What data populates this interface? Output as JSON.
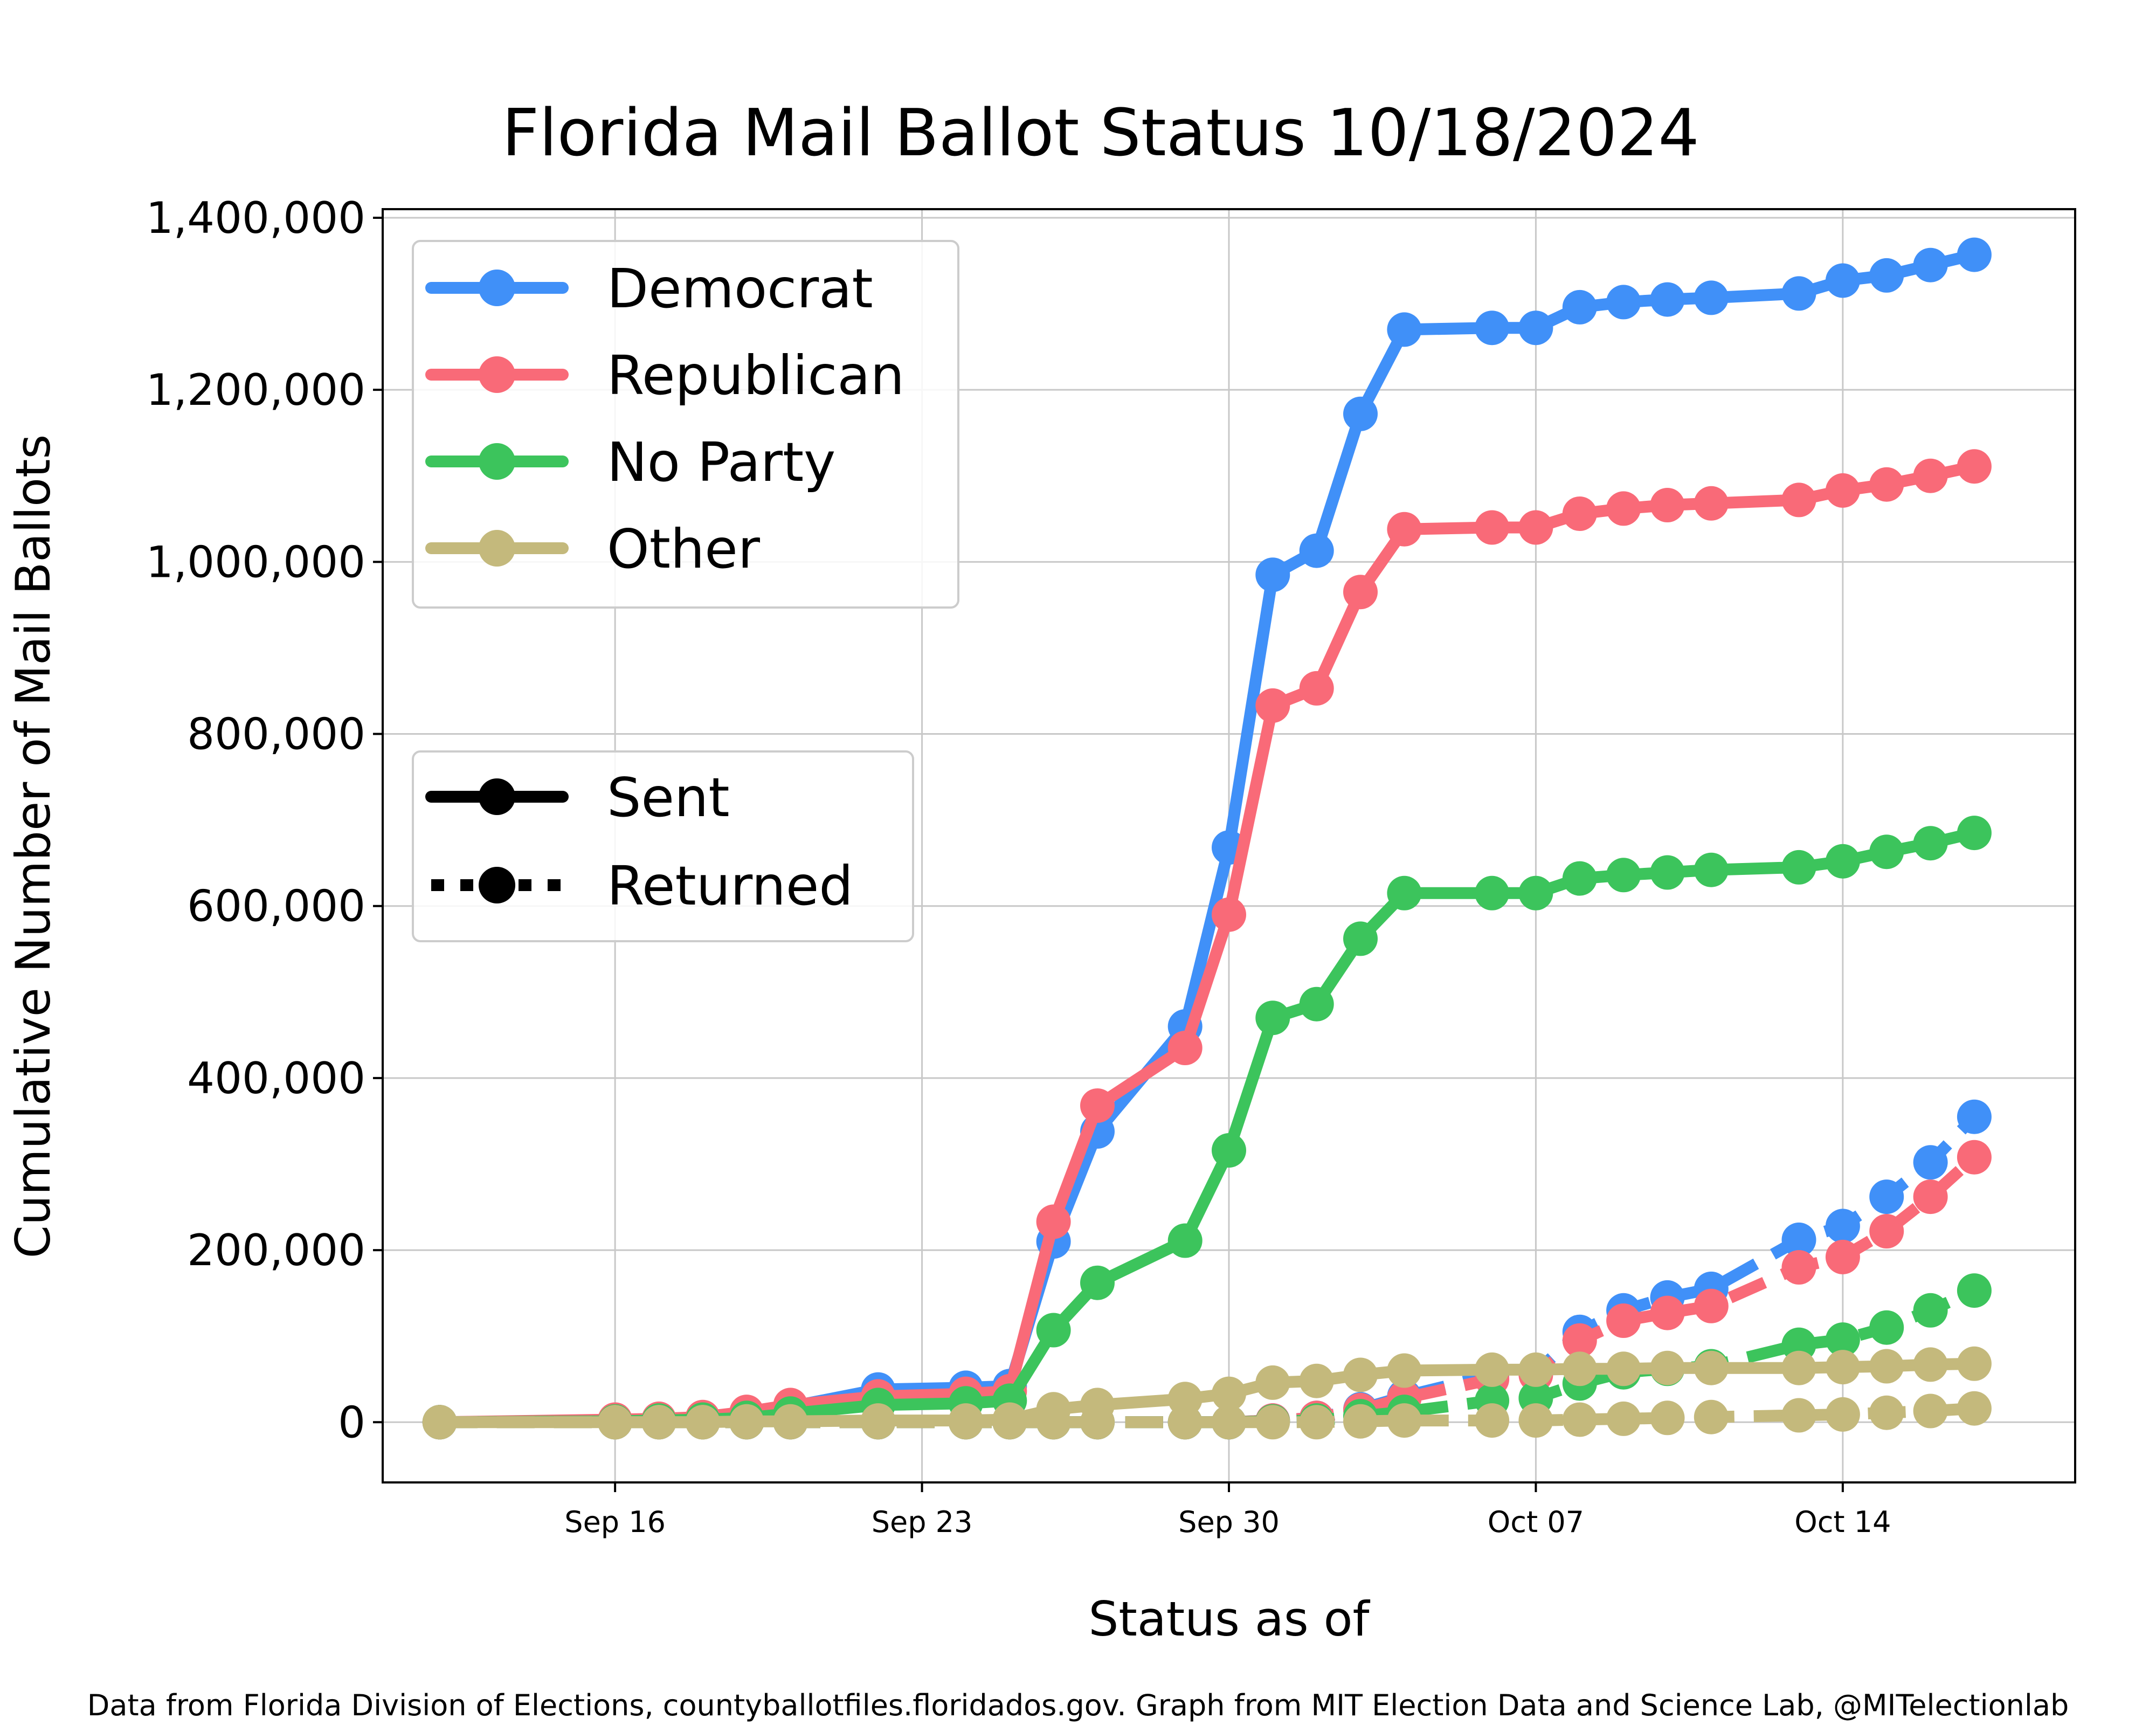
{
  "chart_data": {
    "type": "line",
    "title": "Florida Mail Ballot Status 10/18/2024",
    "xlabel": "Status as of",
    "ylabel": "Cumulative Number of Mail Ballots",
    "source_note": "Data from Florida Division of Elections, countyballotfiles.floridados.gov. Graph from MIT Election Data and Science Lab, @MITelectionlab",
    "x_axis": {
      "type": "date",
      "range": [
        "2024-09-12",
        "2024-10-18"
      ],
      "ticks": [
        {
          "date": "2024-09-16",
          "label": "Sep 16"
        },
        {
          "date": "2024-09-23",
          "label": "Sep 23"
        },
        {
          "date": "2024-09-30",
          "label": "Sep 30"
        },
        {
          "date": "2024-10-07",
          "label": "Oct 07"
        },
        {
          "date": "2024-10-14",
          "label": "Oct 14"
        }
      ]
    },
    "y_axis": {
      "range": [
        -70000,
        1410000
      ],
      "ticks": [
        {
          "value": 0,
          "label": "0"
        },
        {
          "value": 200000,
          "label": "200,000"
        },
        {
          "value": 400000,
          "label": "400,000"
        },
        {
          "value": 600000,
          "label": "600,000"
        },
        {
          "value": 800000,
          "label": "800,000"
        },
        {
          "value": 1000000,
          "label": "1,000,000"
        },
        {
          "value": 1200000,
          "label": "1,200,000"
        },
        {
          "value": 1400000,
          "label": "1,400,000"
        }
      ]
    },
    "grid": true,
    "dates": [
      "2024-09-12",
      "2024-09-16",
      "2024-09-17",
      "2024-09-18",
      "2024-09-19",
      "2024-09-20",
      "2024-09-22",
      "2024-09-24",
      "2024-09-25",
      "2024-09-26",
      "2024-09-27",
      "2024-09-29",
      "2024-09-30",
      "2024-10-01",
      "2024-10-02",
      "2024-10-03",
      "2024-10-04",
      "2024-10-06",
      "2024-10-07",
      "2024-10-08",
      "2024-10-09",
      "2024-10-10",
      "2024-10-11",
      "2024-10-13",
      "2024-10-14",
      "2024-10-15",
      "2024-10-16",
      "2024-10-17"
    ],
    "series": [
      {
        "name": "Democrat",
        "color": "#4090f8",
        "sent": [
          0,
          2000,
          3000,
          5000,
          10000,
          18000,
          38000,
          40000,
          42000,
          210000,
          338000,
          460000,
          668000,
          985000,
          1013000,
          1172000,
          1270000,
          1272000,
          1272000,
          1296000,
          1302000,
          1305000,
          1307000,
          1312000,
          1327000,
          1333000,
          1345000,
          1357000
        ],
        "returned": [
          0,
          0,
          0,
          0,
          0,
          0,
          0,
          0,
          0,
          0,
          0,
          0,
          0,
          2000,
          5000,
          15000,
          30000,
          55000,
          58000,
          105000,
          130000,
          145000,
          155000,
          212000,
          228000,
          262000,
          302000,
          355000
        ]
      },
      {
        "name": "Republican",
        "color": "#f96a78",
        "sent": [
          0,
          3000,
          4000,
          6000,
          12000,
          20000,
          30000,
          33000,
          36000,
          233000,
          368000,
          435000,
          590000,
          833000,
          853000,
          965000,
          1038000,
          1040000,
          1040000,
          1056000,
          1062000,
          1066000,
          1068000,
          1072000,
          1083000,
          1090000,
          1100000,
          1111000
        ],
        "returned": [
          0,
          0,
          0,
          0,
          0,
          0,
          0,
          0,
          0,
          0,
          0,
          0,
          0,
          2000,
          5000,
          14000,
          28000,
          50000,
          55000,
          95000,
          118000,
          127000,
          135000,
          180000,
          192000,
          222000,
          262000,
          308000
        ]
      },
      {
        "name": "No Party",
        "color": "#3cc45c",
        "sent": [
          0,
          1000,
          2000,
          3000,
          5000,
          10000,
          20000,
          22000,
          25000,
          107000,
          162000,
          211000,
          316000,
          470000,
          486000,
          562000,
          615000,
          615000,
          615000,
          632000,
          636000,
          639000,
          642000,
          645000,
          652000,
          663000,
          673000,
          685000
        ],
        "returned": [
          0,
          0,
          0,
          0,
          0,
          0,
          0,
          0,
          0,
          0,
          0,
          0,
          0,
          1000,
          2000,
          7000,
          12000,
          25000,
          28000,
          45000,
          58000,
          62000,
          65000,
          90000,
          96000,
          110000,
          130000,
          153000
        ]
      },
      {
        "name": "Other",
        "color": "#c4b97c",
        "sent": [
          0,
          0,
          0,
          0,
          1000,
          1000,
          2000,
          2000,
          3000,
          15000,
          20000,
          27000,
          33000,
          46000,
          48000,
          55000,
          60000,
          61000,
          61000,
          62000,
          62000,
          63000,
          63000,
          63000,
          64000,
          65000,
          67000,
          68000
        ],
        "returned": [
          0,
          0,
          0,
          0,
          0,
          0,
          0,
          0,
          0,
          0,
          0,
          0,
          0,
          0,
          0,
          1000,
          2000,
          2000,
          2000,
          3000,
          4000,
          5000,
          6000,
          8000,
          9000,
          11000,
          13000,
          16000
        ]
      }
    ],
    "legend_parties": {
      "placement": "upper-left",
      "entries": [
        "Democrat",
        "Republican",
        "No Party",
        "Other"
      ]
    },
    "legend_status": {
      "placement": "center-left",
      "entries": [
        "Sent",
        "Returned"
      ]
    }
  }
}
